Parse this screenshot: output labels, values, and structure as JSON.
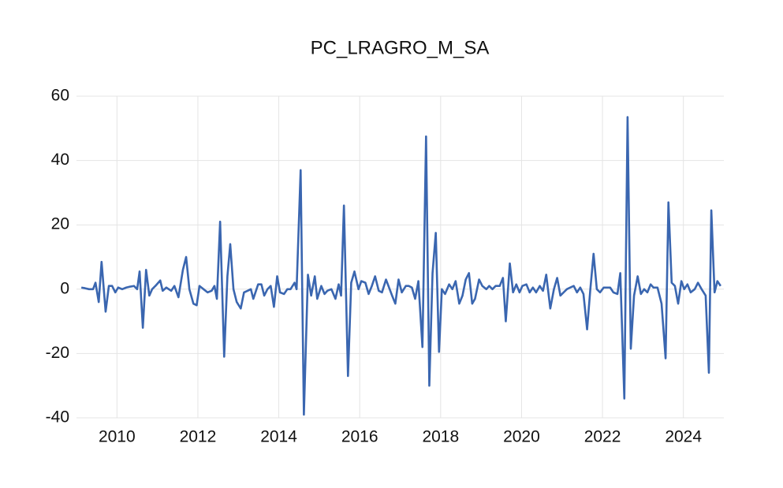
{
  "chart_data": {
    "type": "line",
    "title": "PC_LRAGRO_M_SA",
    "color": "#3a66b0",
    "grid": true,
    "xlim": [
      2009,
      2025
    ],
    "xticks": [
      2010,
      2012,
      2014,
      2016,
      2018,
      2020,
      2022,
      2024
    ],
    "ylim": [
      -40,
      60
    ],
    "yticks": [
      -40,
      -20,
      0,
      20,
      40,
      60
    ],
    "x": [
      2009.12,
      2009.21,
      2009.31,
      2009.41,
      2009.47,
      2009.55,
      2009.62,
      2009.72,
      2009.8,
      2009.88,
      2009.96,
      2010.03,
      2010.13,
      2010.23,
      2010.33,
      2010.42,
      2010.5,
      2010.56,
      2010.64,
      2010.72,
      2010.8,
      2010.87,
      2010.95,
      2011.07,
      2011.13,
      2011.22,
      2011.34,
      2011.42,
      2011.52,
      2011.63,
      2011.71,
      2011.79,
      2011.89,
      2011.97,
      2012.04,
      2012.14,
      2012.24,
      2012.34,
      2012.41,
      2012.47,
      2012.55,
      2012.65,
      2012.73,
      2012.8,
      2012.88,
      2012.96,
      2013.06,
      2013.14,
      2013.23,
      2013.31,
      2013.37,
      2013.49,
      2013.57,
      2013.64,
      2013.72,
      2013.8,
      2013.88,
      2013.96,
      2014.03,
      2014.13,
      2014.21,
      2014.29,
      2014.39,
      2014.44,
      2014.54,
      2014.62,
      2014.72,
      2014.8,
      2014.89,
      2014.95,
      2015.05,
      2015.13,
      2015.2,
      2015.3,
      2015.4,
      2015.48,
      2015.54,
      2015.61,
      2015.71,
      2015.79,
      2015.87,
      2015.97,
      2016.04,
      2016.14,
      2016.22,
      2016.3,
      2016.38,
      2016.47,
      2016.55,
      2016.65,
      2016.71,
      2016.8,
      2016.88,
      2016.96,
      2017.04,
      2017.14,
      2017.21,
      2017.29,
      2017.37,
      2017.45,
      2017.55,
      2017.64,
      2017.72,
      2017.8,
      2017.88,
      2017.96,
      2018.03,
      2018.11,
      2018.21,
      2018.29,
      2018.37,
      2018.46,
      2018.54,
      2018.62,
      2018.7,
      2018.78,
      2018.85,
      2018.95,
      2019.03,
      2019.13,
      2019.2,
      2019.28,
      2019.36,
      2019.46,
      2019.54,
      2019.61,
      2019.71,
      2019.79,
      2019.87,
      2019.95,
      2020.02,
      2020.12,
      2020.2,
      2020.28,
      2020.36,
      2020.45,
      2020.53,
      2020.61,
      2020.71,
      2020.8,
      2020.88,
      2020.96,
      2021.04,
      2021.12,
      2021.2,
      2021.29,
      2021.37,
      2021.45,
      2021.53,
      2021.62,
      2021.7,
      2021.78,
      2021.86,
      2021.94,
      2022.03,
      2022.11,
      2022.19,
      2022.27,
      2022.37,
      2022.44,
      2022.54,
      2022.62,
      2022.7,
      2022.78,
      2022.87,
      2022.95,
      2023.03,
      2023.11,
      2023.19,
      2023.26,
      2023.36,
      2023.46,
      2023.56,
      2023.63,
      2023.71,
      2023.79,
      2023.87,
      2023.95,
      2024.02,
      2024.1,
      2024.18,
      2024.28,
      2024.36,
      2024.45,
      2024.55,
      2024.63,
      2024.69,
      2024.77,
      2024.84,
      2024.92
    ],
    "values": [
      0.5,
      0.3,
      0,
      0,
      2,
      -4,
      8.5,
      -7,
      1,
      1,
      -1,
      0.5,
      0,
      0.5,
      0.8,
      1,
      0,
      5.5,
      -12,
      6,
      -2,
      0,
      1,
      2.7,
      -0.5,
      0.5,
      -0.5,
      1,
      -2.5,
      6,
      10,
      0,
      -4.5,
      -5,
      1,
      0,
      -1,
      -0.5,
      1,
      -3,
      21,
      -21,
      4,
      14,
      0,
      -4,
      -6,
      -1,
      -0.5,
      0,
      -3,
      1.5,
      1.5,
      -2,
      0,
      1,
      -5.5,
      4,
      -1,
      -1.5,
      0,
      0,
      2,
      0,
      37,
      -39,
      4.5,
      -2,
      4,
      -3,
      1,
      -1.5,
      -0.5,
      0,
      -3,
      1.5,
      -2,
      26,
      -27,
      2,
      5.5,
      0,
      2.5,
      2,
      -1.5,
      1,
      4,
      -0.5,
      -1,
      3,
      1,
      -2,
      -4.5,
      3,
      -1,
      1,
      1,
      0.5,
      -3,
      2.5,
      -18,
      47.5,
      -30,
      5,
      17.5,
      -19.5,
      0,
      -1.5,
      1.5,
      0,
      2.5,
      -4.5,
      -2,
      3,
      5,
      -4.5,
      -3,
      3,
      1,
      0,
      1,
      0,
      1,
      1,
      3.5,
      -10,
      8,
      -1,
      1.5,
      -1,
      1,
      1.5,
      -1,
      0.5,
      -1,
      1,
      -0.5,
      4.5,
      -6,
      0,
      3.5,
      -2,
      -1,
      0,
      0.5,
      1,
      -1,
      0.5,
      -1.5,
      -12.5,
      0,
      11,
      0,
      -1,
      0.5,
      0.5,
      0.5,
      -1,
      -1.5,
      5,
      -34,
      53.5,
      -18.5,
      -2,
      4,
      -1.5,
      0,
      -1,
      1.5,
      0.5,
      0.5,
      -4.5,
      -21.5,
      27,
      2,
      1,
      -4.5,
      2.5,
      0,
      1.5,
      -1,
      0,
      2,
      0,
      -2,
      -26,
      24.5,
      -1,
      2.5,
      1
    ]
  }
}
